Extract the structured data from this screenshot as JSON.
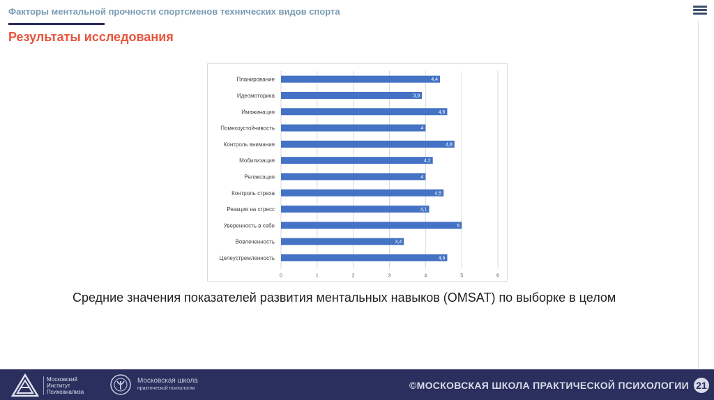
{
  "header": {
    "title": "Факторы ментальной прочности спортсменов технических видов спорта"
  },
  "section": {
    "title": "Результаты исследования"
  },
  "chart_data": {
    "type": "bar",
    "orientation": "horizontal",
    "categories": [
      "Планирование",
      "Идеомоторика",
      "Имажинация",
      "Помехоустойчивость",
      "Контроль внимания",
      "Мобилизация",
      "Релаксация",
      "Контроль страха",
      "Реакция на стресс",
      "Уверенность в себе",
      "Вовлеченность",
      "Целеустремленность"
    ],
    "values": [
      4.4,
      3.9,
      4.6,
      4,
      4.8,
      4.2,
      4,
      4.5,
      4.1,
      5,
      3.4,
      4.6
    ],
    "value_labels": [
      "4,4",
      "3,9",
      "4,6",
      "4",
      "4,8",
      "4,2",
      "4",
      "4,5",
      "4,1",
      "5",
      "3,4",
      "4,6"
    ],
    "xlim": [
      0,
      6
    ],
    "xticks": [
      "0",
      "1",
      "2",
      "3",
      "4",
      "5",
      "6"
    ],
    "grid": true,
    "bar_color": "#4472c4"
  },
  "caption": "Средние значения показателей развития ментальных навыков (OMSAT) по выборке в целом",
  "footer": {
    "logo_a_lines": [
      "Московский",
      "Институт",
      "Психоанализа"
    ],
    "logo_b_line1": "Московская школа",
    "logo_b_line2": "практической психологии",
    "copyright": "©МОСКОВСКАЯ ШКОЛА ПРАКТИЧЕСКОЙ ПСИХОЛОГИИ",
    "page_number": "21"
  }
}
